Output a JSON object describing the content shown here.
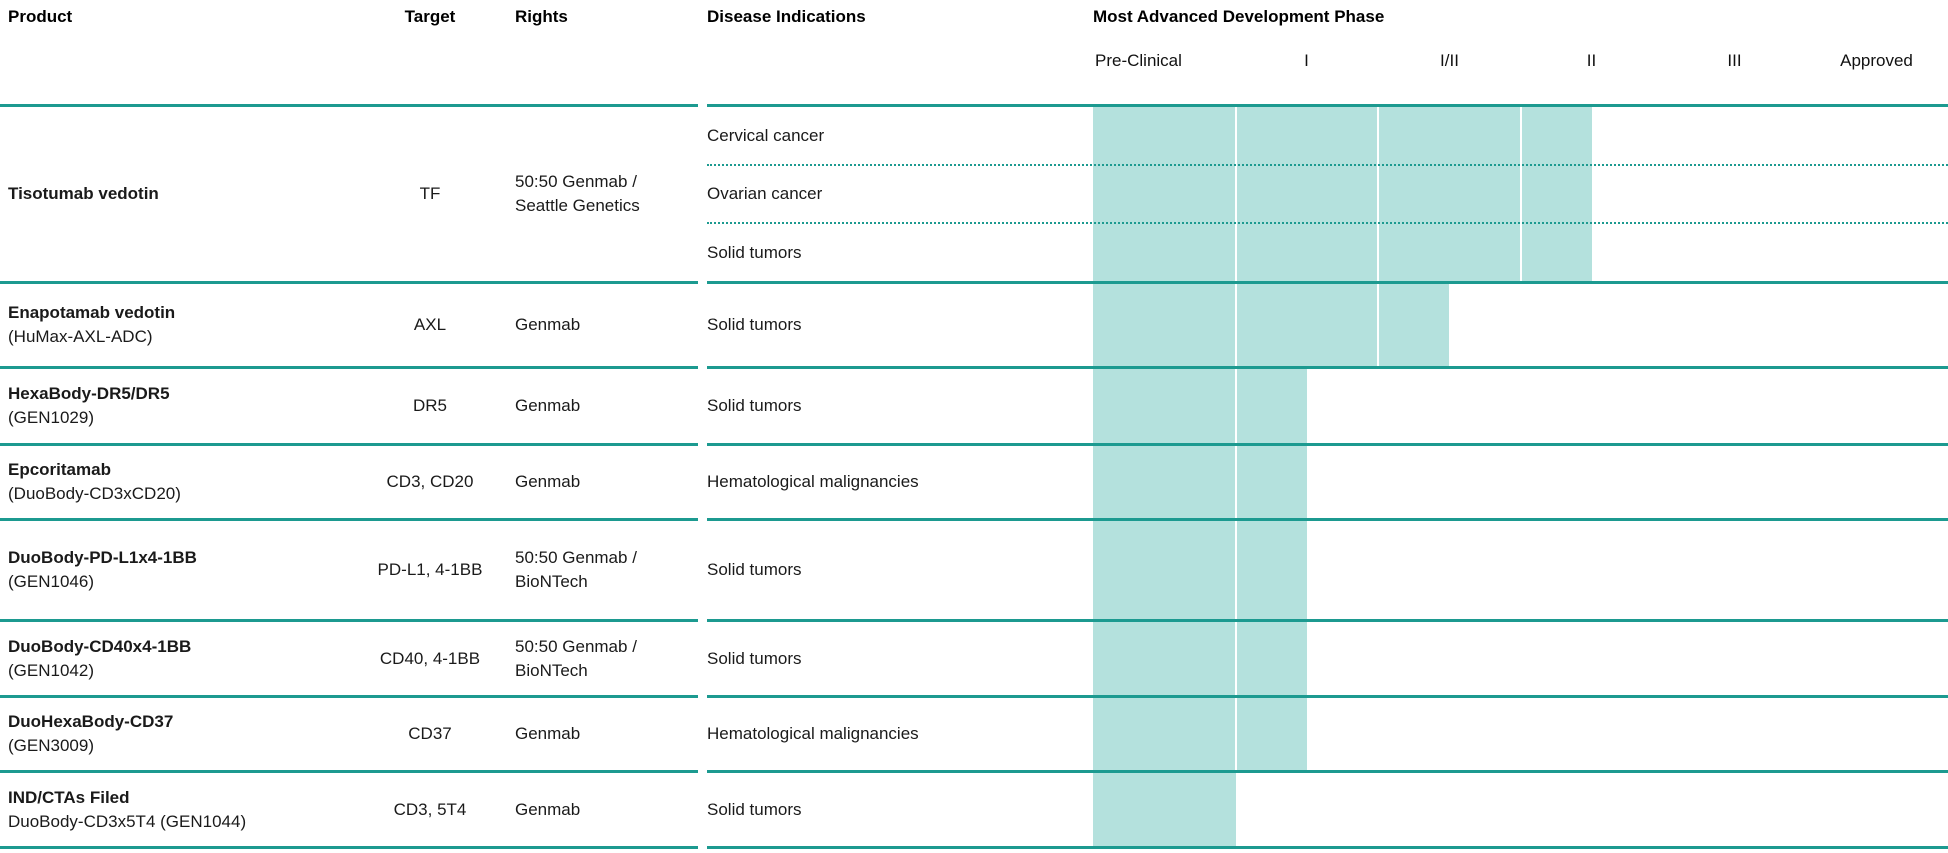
{
  "header": {
    "product_label": "Product",
    "target_label": "Target",
    "rights_label": "Rights",
    "disease_label": "Disease Indications",
    "phase_group_label": "Most Advanced Development Phase",
    "phases": [
      "Pre-Clinical",
      "I",
      "I/II",
      "II",
      "III",
      "Approved"
    ]
  },
  "colors": {
    "rule_teal": "#1c9a90",
    "bar_fill": "#b4e1dd",
    "bar_divider": "#ffffff",
    "text": "#1a1a1a"
  },
  "rows": [
    {
      "product": "Tisotumab vedotin",
      "product_sub": "",
      "target": "TF",
      "rights": "50:50 Genmab /\nSeattle Genetics",
      "indications": [
        "Cervical cancer",
        "Ovarian cancer",
        "Solid tumors"
      ],
      "most_advanced_phase": "II",
      "phase_level": 3.5
    },
    {
      "product": "Enapotamab vedotin",
      "product_sub": "(HuMax-AXL-ADC)",
      "target": "AXL",
      "rights": "Genmab",
      "indications": [
        "Solid tumors"
      ],
      "most_advanced_phase": "I/II",
      "phase_level": 2.5
    },
    {
      "product": "HexaBody-DR5/DR5",
      "product_sub": "(GEN1029)",
      "target": "DR5",
      "rights": "Genmab",
      "indications": [
        "Solid tumors"
      ],
      "most_advanced_phase": "I",
      "phase_level": 1.5
    },
    {
      "product": "Epcoritamab",
      "product_sub": "(DuoBody-CD3xCD20)",
      "target": "CD3, CD20",
      "rights": "Genmab",
      "indications": [
        "Hematological malignancies"
      ],
      "most_advanced_phase": "I",
      "phase_level": 1.5
    },
    {
      "product": "DuoBody-PD-L1x4-1BB",
      "product_sub": "(GEN1046)",
      "target": "PD-L1, 4-1BB",
      "rights": "50:50 Genmab /\nBioNTech",
      "indications": [
        "Solid tumors"
      ],
      "most_advanced_phase": "I",
      "phase_level": 1.5
    },
    {
      "product": "DuoBody-CD40x4-1BB",
      "product_sub": "(GEN1042)",
      "target": "CD40, 4-1BB",
      "rights": "50:50 Genmab /\nBioNTech",
      "indications": [
        "Solid tumors"
      ],
      "most_advanced_phase": "I",
      "phase_level": 1.5
    },
    {
      "product": "DuoHexaBody-CD37",
      "product_sub": "(GEN3009)",
      "target": "CD37",
      "rights": "Genmab",
      "indications": [
        "Hematological malignancies"
      ],
      "most_advanced_phase": "I",
      "phase_level": 1.5
    },
    {
      "product": "IND/CTAs Filed",
      "product_sub": "DuoBody-CD3x5T4 (GEN1044)",
      "target": "CD3, 5T4",
      "rights": "Genmab",
      "indications": [
        "Solid tumors"
      ],
      "most_advanced_phase": "Pre-Clinical",
      "phase_level": 1.0
    }
  ],
  "chart_data": {
    "type": "bar",
    "title": "Most Advanced Development Phase",
    "phase_scale": [
      "Pre-Clinical",
      "I",
      "I/II",
      "II",
      "III",
      "Approved"
    ],
    "categories": [
      "Tisotumab vedotin",
      "Enapotamab vedotin (HuMax-AXL-ADC)",
      "HexaBody-DR5/DR5 (GEN1029)",
      "Epcoritamab (DuoBody-CD3xCD20)",
      "DuoBody-PD-L1x4-1BB (GEN1046)",
      "DuoBody-CD40x4-1BB (GEN1042)",
      "DuoHexaBody-CD37 (GEN3009)",
      "IND/CTAs Filed DuoBody-CD3x5T4 (GEN1044)"
    ],
    "values": [
      "II",
      "I/II",
      "I",
      "I",
      "I",
      "I",
      "I",
      "Pre-Clinical"
    ],
    "bar_extent_in_columns": [
      3.5,
      2.5,
      1.5,
      1.5,
      1.5,
      1.5,
      1.5,
      1.0
    ],
    "legend_position": "none",
    "grid": "row separators solid teal, sub-row separators dotted teal"
  }
}
